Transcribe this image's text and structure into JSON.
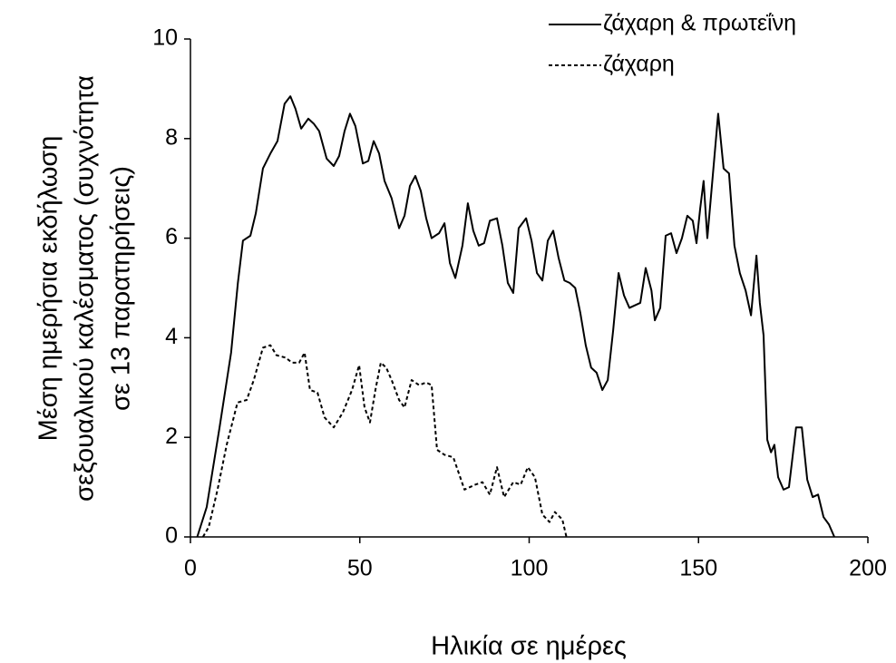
{
  "chart_data": {
    "type": "line",
    "x_label": "Ηλικία σε ημέρες",
    "y_label": [
      "Μέση ημερήσια εκδήλωση",
      "σεξουαλικού καλέσματος (συχνότητα",
      "σε 13 παρατηρήσεις)"
    ],
    "xlim": [
      0,
      200
    ],
    "xticks": [
      0,
      50,
      100,
      150,
      200
    ],
    "ylim": [
      0,
      10
    ],
    "yticks": [
      0,
      2,
      4,
      6,
      8,
      10
    ],
    "grid": false,
    "legend": "top-right",
    "series": [
      {
        "name": "ζάχαρη & πρωτεΐνη",
        "color": "#000000",
        "dash": "solid",
        "x": [
          2,
          4.8,
          8.6,
          12,
          14,
          15.5,
          17.7,
          19.3,
          21.4,
          23.6,
          25.7,
          27.8,
          29.5,
          31,
          32.7,
          34.8,
          36.4,
          38,
          40.2,
          42.3,
          43.9,
          45.5,
          47.1,
          48.7,
          50.9,
          52.5,
          54.1,
          55.7,
          57.3,
          59.4,
          61.6,
          63.2,
          64.8,
          66.4,
          68,
          69.6,
          71.2,
          73.4,
          75,
          76.6,
          78.2,
          80.3,
          81.9,
          83.5,
          85.1,
          86.7,
          88.4,
          90.5,
          92.1,
          93.7,
          95.3,
          96.9,
          99.1,
          100.7,
          102.3,
          103.9,
          105.5,
          107.1,
          108.7,
          110.4,
          112,
          113.6,
          115.1,
          116.7,
          118.3,
          119.9,
          121.6,
          123.2,
          124.8,
          126.4,
          128,
          129.6,
          131.2,
          132.8,
          134.4,
          136.1,
          137.1,
          138.7,
          140.3,
          141.9,
          143.5,
          145.1,
          146.7,
          148.3,
          149.4,
          150.5,
          151.5,
          152.6,
          154.2,
          155.8,
          157.4,
          159,
          160.6,
          162.2,
          163.9,
          165.5,
          167.1,
          168.1,
          169.2,
          170.3,
          171.4,
          172.4,
          173.5,
          175.1,
          176.7,
          178.8,
          180.5,
          182.1,
          183.7,
          185.3,
          186.9,
          188.5,
          190.1
        ],
        "values": [
          0,
          0.6,
          2.2,
          3.7,
          5.1,
          5.95,
          6.05,
          6.5,
          7.4,
          7.7,
          7.95,
          8.7,
          8.85,
          8.6,
          8.2,
          8.4,
          8.3,
          8.15,
          7.6,
          7.45,
          7.65,
          8.15,
          8.5,
          8.25,
          7.5,
          7.55,
          7.95,
          7.7,
          7.15,
          6.8,
          6.2,
          6.45,
          7.05,
          7.25,
          6.95,
          6.4,
          6.0,
          6.1,
          6.3,
          5.5,
          5.2,
          5.85,
          6.7,
          6.15,
          5.85,
          5.9,
          6.35,
          6.4,
          5.85,
          5.1,
          4.9,
          6.2,
          6.4,
          5.95,
          5.3,
          5.15,
          5.95,
          6.15,
          5.6,
          5.15,
          5.1,
          5.0,
          4.5,
          3.85,
          3.4,
          3.3,
          2.95,
          3.15,
          4.15,
          5.3,
          4.85,
          4.6,
          4.65,
          4.7,
          5.4,
          4.95,
          4.35,
          4.6,
          6.05,
          6.1,
          5.7,
          6.0,
          6.45,
          6.35,
          5.9,
          6.6,
          7.15,
          6.0,
          7.25,
          8.5,
          7.4,
          7.3,
          5.85,
          5.3,
          4.95,
          4.45,
          5.65,
          4.7,
          4.05,
          1.95,
          1.7,
          1.85,
          1.2,
          0.95,
          1.0,
          2.2,
          2.2,
          1.15,
          0.8,
          0.85,
          0.4,
          0.25,
          0
        ]
      },
      {
        "name": "ζάχαρη",
        "color": "#000000",
        "dash": "dashed",
        "x": [
          3.7,
          5.4,
          8,
          10.7,
          13.9,
          16.6,
          18.7,
          21.4,
          23.6,
          25.4,
          28.1,
          30,
          32.1,
          33.7,
          35.3,
          37.5,
          39.6,
          42.3,
          45,
          47.7,
          49.8,
          51.4,
          53,
          54.6,
          56.2,
          57.8,
          59.4,
          61.6,
          63.2,
          65.3,
          67.5,
          69.6,
          71.2,
          72.8,
          75,
          77.6,
          80.9,
          84.1,
          86.2,
          88.4,
          90.5,
          92.6,
          95.3,
          97.5,
          99.6,
          101.7,
          103.9,
          106,
          107.6,
          109.8,
          111
        ],
        "values": [
          0,
          0.2,
          0.95,
          1.85,
          2.7,
          2.75,
          3.15,
          3.8,
          3.85,
          3.65,
          3.6,
          3.5,
          3.5,
          3.7,
          2.95,
          2.9,
          2.4,
          2.2,
          2.5,
          2.95,
          3.45,
          2.6,
          2.3,
          2.95,
          3.5,
          3.4,
          3.15,
          2.75,
          2.6,
          3.15,
          3.05,
          3.1,
          3.05,
          1.75,
          1.65,
          1.6,
          0.95,
          1.05,
          1.1,
          0.85,
          1.4,
          0.8,
          1.1,
          1.05,
          1.4,
          1.2,
          0.45,
          0.3,
          0.5,
          0.35,
          0
        ]
      }
    ]
  }
}
